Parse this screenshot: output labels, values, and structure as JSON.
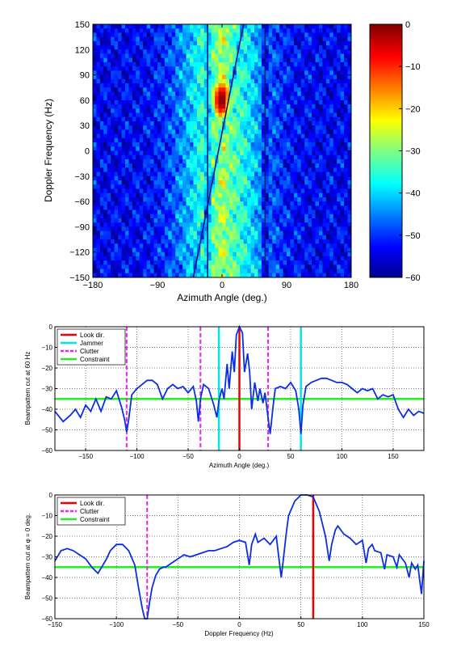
{
  "chart_data": [
    {
      "type": "heatmap",
      "xlabel": "Azimuth Angle (deg.)",
      "ylabel": "Doppler Frequency (Hz)",
      "xlim": [
        -180,
        180
      ],
      "ylim": [
        -150,
        150
      ],
      "xticks": [
        "−180",
        "−90",
        "0",
        "90",
        "180"
      ],
      "xtick_values": [
        -180,
        -90,
        0,
        90,
        180
      ],
      "yticks": [
        "150",
        "120",
        "90",
        "60",
        "30",
        "0",
        "−30",
        "−60",
        "−90",
        "−120",
        "−150"
      ],
      "ytick_values": [
        150,
        120,
        90,
        60,
        30,
        0,
        -30,
        -60,
        -90,
        -120,
        -150
      ],
      "peak": {
        "azimuth": 0,
        "doppler": 60,
        "value": 0
      },
      "jammer_lines_azimuth": [
        -20,
        60
      ],
      "clutter_ridge": {
        "from": [
          -40,
          -150
        ],
        "to": [
          30,
          150
        ]
      },
      "colorbar": {
        "range": [
          -60,
          0
        ],
        "ticks": [
          "0",
          "−10",
          "−20",
          "−30",
          "−40",
          "−50",
          "−60"
        ],
        "tick_values": [
          0,
          -10,
          -20,
          -30,
          -40,
          -50,
          -60
        ]
      }
    },
    {
      "type": "line",
      "xlabel": "Azimuth Angle (deg.)",
      "ylabel": "Beampattern cut at 60 Hz",
      "xlim": [
        -180,
        180
      ],
      "ylim": [
        -60,
        0
      ],
      "xticks": [
        "−150",
        "−100",
        "−50",
        "0",
        "50",
        "100",
        "150"
      ],
      "xtick_values": [
        -150,
        -100,
        -50,
        0,
        50,
        100,
        150
      ],
      "yticks": [
        "0",
        "−10",
        "−20",
        "−30",
        "−40",
        "−50",
        "−60"
      ],
      "ytick_values": [
        0,
        -10,
        -20,
        -30,
        -40,
        -50,
        -60
      ],
      "legend": [
        "Look dir.",
        "Jammer",
        "Clutter",
        "Constraint"
      ],
      "legend_position": "top-left",
      "look_dir": 0,
      "jammer": [
        -20,
        60
      ],
      "clutter": [
        -110,
        -38,
        28
      ],
      "constraint": -35,
      "series": [
        {
          "x": [
            -180,
            -172,
            -165,
            -160,
            -155,
            -150,
            -145,
            -140,
            -135,
            -130,
            -125,
            -120,
            -115,
            -112,
            -110,
            -108,
            -105,
            -100,
            -95,
            -90,
            -85,
            -80,
            -75,
            -70,
            -65,
            -60,
            -55,
            -50,
            -45,
            -42,
            -40,
            -38,
            -35,
            -30,
            -25,
            -22,
            -20,
            -17,
            -15,
            -12,
            -10,
            -7,
            -5,
            -3,
            0,
            3,
            5,
            8,
            10,
            12,
            15,
            18,
            20,
            23,
            25,
            28,
            30,
            33,
            35,
            40,
            45,
            50,
            55,
            58,
            60,
            62,
            65,
            70,
            75,
            80,
            85,
            90,
            95,
            100,
            105,
            110,
            115,
            120,
            125,
            130,
            135,
            140,
            145,
            150,
            155,
            160,
            165,
            170,
            175,
            180
          ],
          "y": [
            -41,
            -46,
            -43,
            -40,
            -44,
            -38,
            -41,
            -35,
            -41,
            -34,
            -35,
            -31,
            -39,
            -45,
            -51,
            -45,
            -33,
            -30,
            -28,
            -26,
            -26,
            -28,
            -35,
            -30,
            -28,
            -30,
            -29,
            -32,
            -29,
            -36,
            -46,
            -35,
            -28,
            -30,
            -38,
            -44,
            -36,
            -30,
            -35,
            -18,
            -30,
            -12,
            -22,
            -4,
            0,
            -3,
            -22,
            -13,
            -22,
            -40,
            -27,
            -36,
            -30,
            -37,
            -32,
            -44,
            -52,
            -38,
            -30,
            -29,
            -30,
            -27,
            -31,
            -40,
            -52,
            -38,
            -29,
            -27,
            -26,
            -25,
            -25,
            -26,
            -27,
            -27,
            -28,
            -30,
            -32,
            -30,
            -31,
            -30,
            -35,
            -33,
            -34,
            -33,
            -40,
            -44,
            -40,
            -43,
            -41,
            -42
          ]
        }
      ]
    },
    {
      "type": "line",
      "xlabel": "Doppler Frequency (Hz)",
      "ylabel": "Beampattern cut at φ = 0 deg.",
      "xlim": [
        -150,
        150
      ],
      "ylim": [
        -60,
        0
      ],
      "xticks": [
        "−150",
        "−100",
        "−50",
        "0",
        "50",
        "100",
        "150"
      ],
      "xtick_values": [
        -150,
        -100,
        -50,
        0,
        50,
        100,
        150
      ],
      "yticks": [
        "0",
        "−10",
        "−20",
        "−30",
        "−40",
        "−50",
        "−60"
      ],
      "ytick_values": [
        0,
        -10,
        -20,
        -30,
        -40,
        -50,
        -60
      ],
      "legend": [
        "Look dir.",
        "Clutter",
        "Constraint"
      ],
      "legend_position": "top-left",
      "look_dir": 60,
      "clutter": [
        -75
      ],
      "constraint": -35,
      "series": [
        {
          "x": [
            -150,
            -145,
            -140,
            -135,
            -130,
            -125,
            -120,
            -115,
            -112,
            -108,
            -105,
            -100,
            -95,
            -90,
            -85,
            -82,
            -79,
            -77,
            -75,
            -73,
            -71,
            -68,
            -65,
            -62,
            -60,
            -55,
            -50,
            -45,
            -40,
            -35,
            -30,
            -25,
            -20,
            -15,
            -10,
            -5,
            0,
            5,
            8,
            10,
            13,
            15,
            20,
            25,
            30,
            32,
            34,
            36,
            38,
            40,
            45,
            50,
            55,
            60,
            65,
            70,
            73,
            75,
            78,
            80,
            85,
            90,
            95,
            100,
            103,
            105,
            108,
            110,
            115,
            118,
            120,
            125,
            128,
            130,
            135,
            138,
            140,
            143,
            145,
            148,
            150
          ],
          "y": [
            -32,
            -27,
            -26,
            -27,
            -29,
            -31,
            -35,
            -38,
            -35,
            -31,
            -27,
            -24,
            -24,
            -27,
            -34,
            -45,
            -55,
            -65,
            -60,
            -52,
            -45,
            -39,
            -36,
            -35,
            -35,
            -33,
            -31,
            -29,
            -30,
            -29,
            -28,
            -27,
            -27,
            -26,
            -25,
            -23,
            -22,
            -23,
            -34,
            -24,
            -19,
            -23,
            -21,
            -24,
            -20,
            -30,
            -40,
            -30,
            -19,
            -10,
            -3,
            0,
            0,
            -1,
            -8,
            -20,
            -32,
            -24,
            -17,
            -15,
            -19,
            -21,
            -24,
            -22,
            -33,
            -26,
            -24,
            -27,
            -28,
            -36,
            -29,
            -30,
            -35,
            -29,
            -33,
            -40,
            -33,
            -36,
            -34,
            -48,
            -32
          ]
        }
      ]
    }
  ]
}
